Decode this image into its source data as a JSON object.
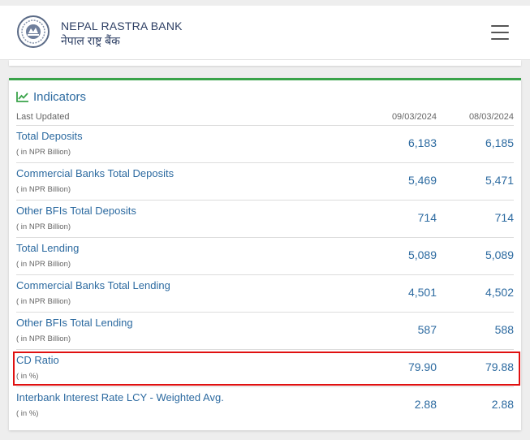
{
  "header": {
    "bank_name_en": "NEPAL RASTRA BANK",
    "bank_name_np": "नेपाल राष्ट्र बैंक",
    "logo_icon": "bank-seal-icon",
    "menu_icon": "hamburger-menu-icon"
  },
  "indicators": {
    "title": "Indicators",
    "title_icon": "line-chart-icon",
    "accent_color": "#3aa34a",
    "last_updated_label": "Last Updated",
    "dates": [
      "09/03/2024",
      "08/03/2024"
    ],
    "rows": [
      {
        "name": "Total Deposits",
        "unit": "( in NPR Billion)",
        "v1": "6,183",
        "v2": "6,185"
      },
      {
        "name": "Commercial Banks Total Deposits",
        "unit": "( in NPR Billion)",
        "v1": "5,469",
        "v2": "5,471"
      },
      {
        "name": "Other BFIs Total Deposits",
        "unit": "( in NPR Billion)",
        "v1": "714",
        "v2": "714"
      },
      {
        "name": "Total Lending",
        "unit": "( in NPR Billion)",
        "v1": "5,089",
        "v2": "5,089"
      },
      {
        "name": "Commercial Banks Total Lending",
        "unit": "( in NPR Billion)",
        "v1": "4,501",
        "v2": "4,502"
      },
      {
        "name": "Other BFIs Total Lending",
        "unit": "( in NPR Billion)",
        "v1": "587",
        "v2": "588"
      },
      {
        "name": "CD Ratio",
        "unit": "( in %)",
        "v1": "79.90",
        "v2": "79.88"
      },
      {
        "name": "Interbank Interest Rate LCY - Weighted Avg.",
        "unit": "( in %)",
        "v1": "2.88",
        "v2": "2.88"
      }
    ]
  },
  "highlight_color": "#e01010"
}
